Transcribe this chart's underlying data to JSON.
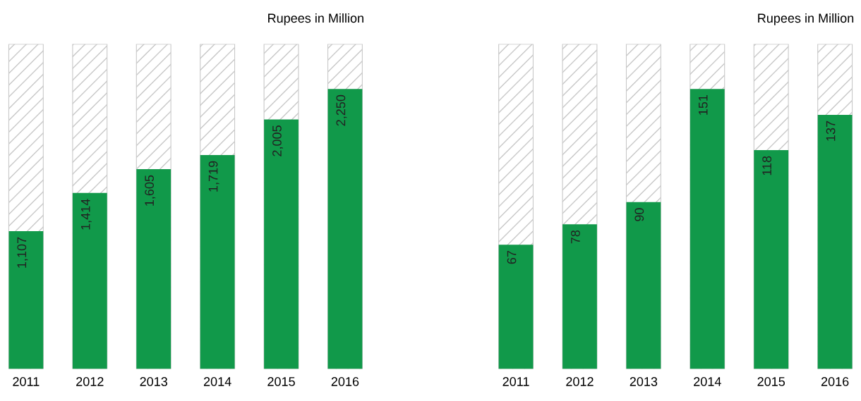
{
  "chart_data": [
    {
      "type": "bar",
      "title": "Rupees in Million",
      "categories": [
        "2011",
        "2012",
        "2013",
        "2014",
        "2015",
        "2016"
      ],
      "values": [
        1107,
        1414,
        1605,
        1719,
        2005,
        2250
      ],
      "value_labels": [
        "1,107",
        "1,414",
        "1,605",
        "1,719",
        "2,005",
        "2,250"
      ],
      "color": "#11994a",
      "grid": false,
      "legend": false
    },
    {
      "type": "bar",
      "title": "Rupees in Million",
      "categories": [
        "2011",
        "2012",
        "2013",
        "2014",
        "2015",
        "2016"
      ],
      "values": [
        67,
        78,
        90,
        151,
        118,
        137
      ],
      "color": "#11994a",
      "data_labels": true,
      "grid": false,
      "legend": false
    }
  ]
}
